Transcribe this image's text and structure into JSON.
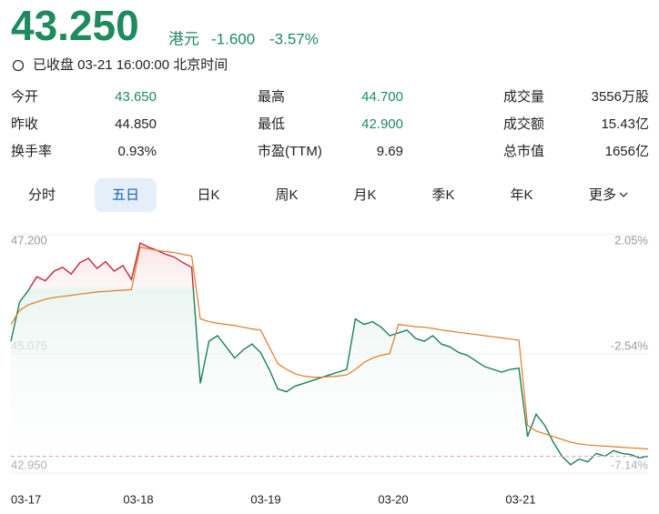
{
  "header": {
    "price": "43.250",
    "currency": "港元",
    "change": "-1.600",
    "change_pct": "-3.57%",
    "status": "已收盘 03-21 16:00:00 北京时间"
  },
  "stats": [
    [
      {
        "label": "今开",
        "value": "43.650"
      },
      {
        "label": "最高",
        "value": "44.700"
      },
      {
        "label": "成交量",
        "value": "3556万股"
      }
    ],
    [
      {
        "label": "昨收",
        "value": "44.850"
      },
      {
        "label": "最低",
        "value": "42.900"
      },
      {
        "label": "成交额",
        "value": "15.43亿"
      }
    ],
    [
      {
        "label": "换手率",
        "value": "0.93%"
      },
      {
        "label": "市盈(TTM)",
        "value": "9.69"
      },
      {
        "label": "总市值",
        "value": "1656亿"
      }
    ]
  ],
  "tabs": [
    "分时",
    "五日",
    "日K",
    "周K",
    "月K",
    "季K",
    "年K",
    "更多"
  ],
  "active_tab": "五日",
  "chart_data": {
    "type": "line",
    "x_labels": [
      "03-17",
      "03-18",
      "03-19",
      "03-20",
      "03-21"
    ],
    "series": [
      {
        "color": "#1a7f5a",
        "above_color": "#c8283c",
        "values": [
          45.3,
          46.0,
          46.2,
          46.45,
          46.38,
          46.55,
          46.62,
          46.5,
          46.7,
          46.78,
          46.6,
          46.72,
          46.55,
          46.65,
          46.4,
          47.05,
          46.98,
          46.92,
          46.85,
          46.8,
          46.7,
          46.62,
          44.55,
          45.3,
          45.4,
          45.2,
          45.0,
          45.15,
          45.25,
          45.1,
          44.8,
          44.45,
          44.4,
          44.5,
          44.55,
          44.6,
          44.65,
          44.7,
          44.75,
          44.8,
          45.7,
          45.6,
          45.65,
          45.55,
          45.4,
          45.45,
          45.5,
          45.35,
          45.3,
          45.4,
          45.25,
          45.2,
          45.1,
          45.05,
          44.95,
          44.85,
          44.8,
          44.75,
          44.8,
          44.82,
          43.6,
          44.0,
          43.8,
          43.5,
          43.25,
          43.1,
          43.2,
          43.15,
          43.3,
          43.25,
          43.35,
          43.3,
          43.28,
          43.22,
          43.25
        ]
      },
      {
        "color": "#e07b26",
        "values": [
          45.6,
          45.85,
          45.95,
          46.0,
          46.05,
          46.08,
          46.1,
          46.12,
          46.14,
          46.16,
          46.18,
          46.19,
          46.2,
          46.21,
          46.22,
          46.98,
          46.95,
          46.92,
          46.9,
          46.88,
          46.85,
          46.82,
          45.7,
          45.65,
          45.62,
          45.6,
          45.58,
          45.55,
          45.52,
          45.5,
          45.2,
          44.9,
          44.8,
          44.72,
          44.68,
          44.66,
          44.66,
          44.67,
          44.68,
          44.7,
          44.8,
          44.92,
          45.0,
          45.05,
          45.08,
          45.6,
          45.58,
          45.56,
          45.55,
          45.53,
          45.5,
          45.48,
          45.46,
          45.44,
          45.42,
          45.4,
          45.38,
          45.36,
          45.34,
          45.32,
          43.8,
          43.7,
          43.65,
          43.6,
          43.55,
          43.5,
          43.47,
          43.45,
          43.44,
          43.43,
          43.42,
          43.41,
          43.4,
          43.39,
          43.38
        ]
      }
    ],
    "ylim": [
      42.95,
      47.2
    ],
    "yticks": [
      {
        "value": 47.2,
        "label": "47.200"
      },
      {
        "value": 45.075,
        "label": "45.075"
      },
      {
        "value": 42.95,
        "label": "42.950"
      }
    ],
    "y2lim": [
      -7.14,
      2.05
    ],
    "y2ticks": [
      {
        "value": 2.05,
        "label": "2.05%"
      },
      {
        "value": -2.54,
        "label": "-2.54%"
      },
      {
        "value": -7.14,
        "label": "-7.14%"
      }
    ],
    "grid": true
  }
}
